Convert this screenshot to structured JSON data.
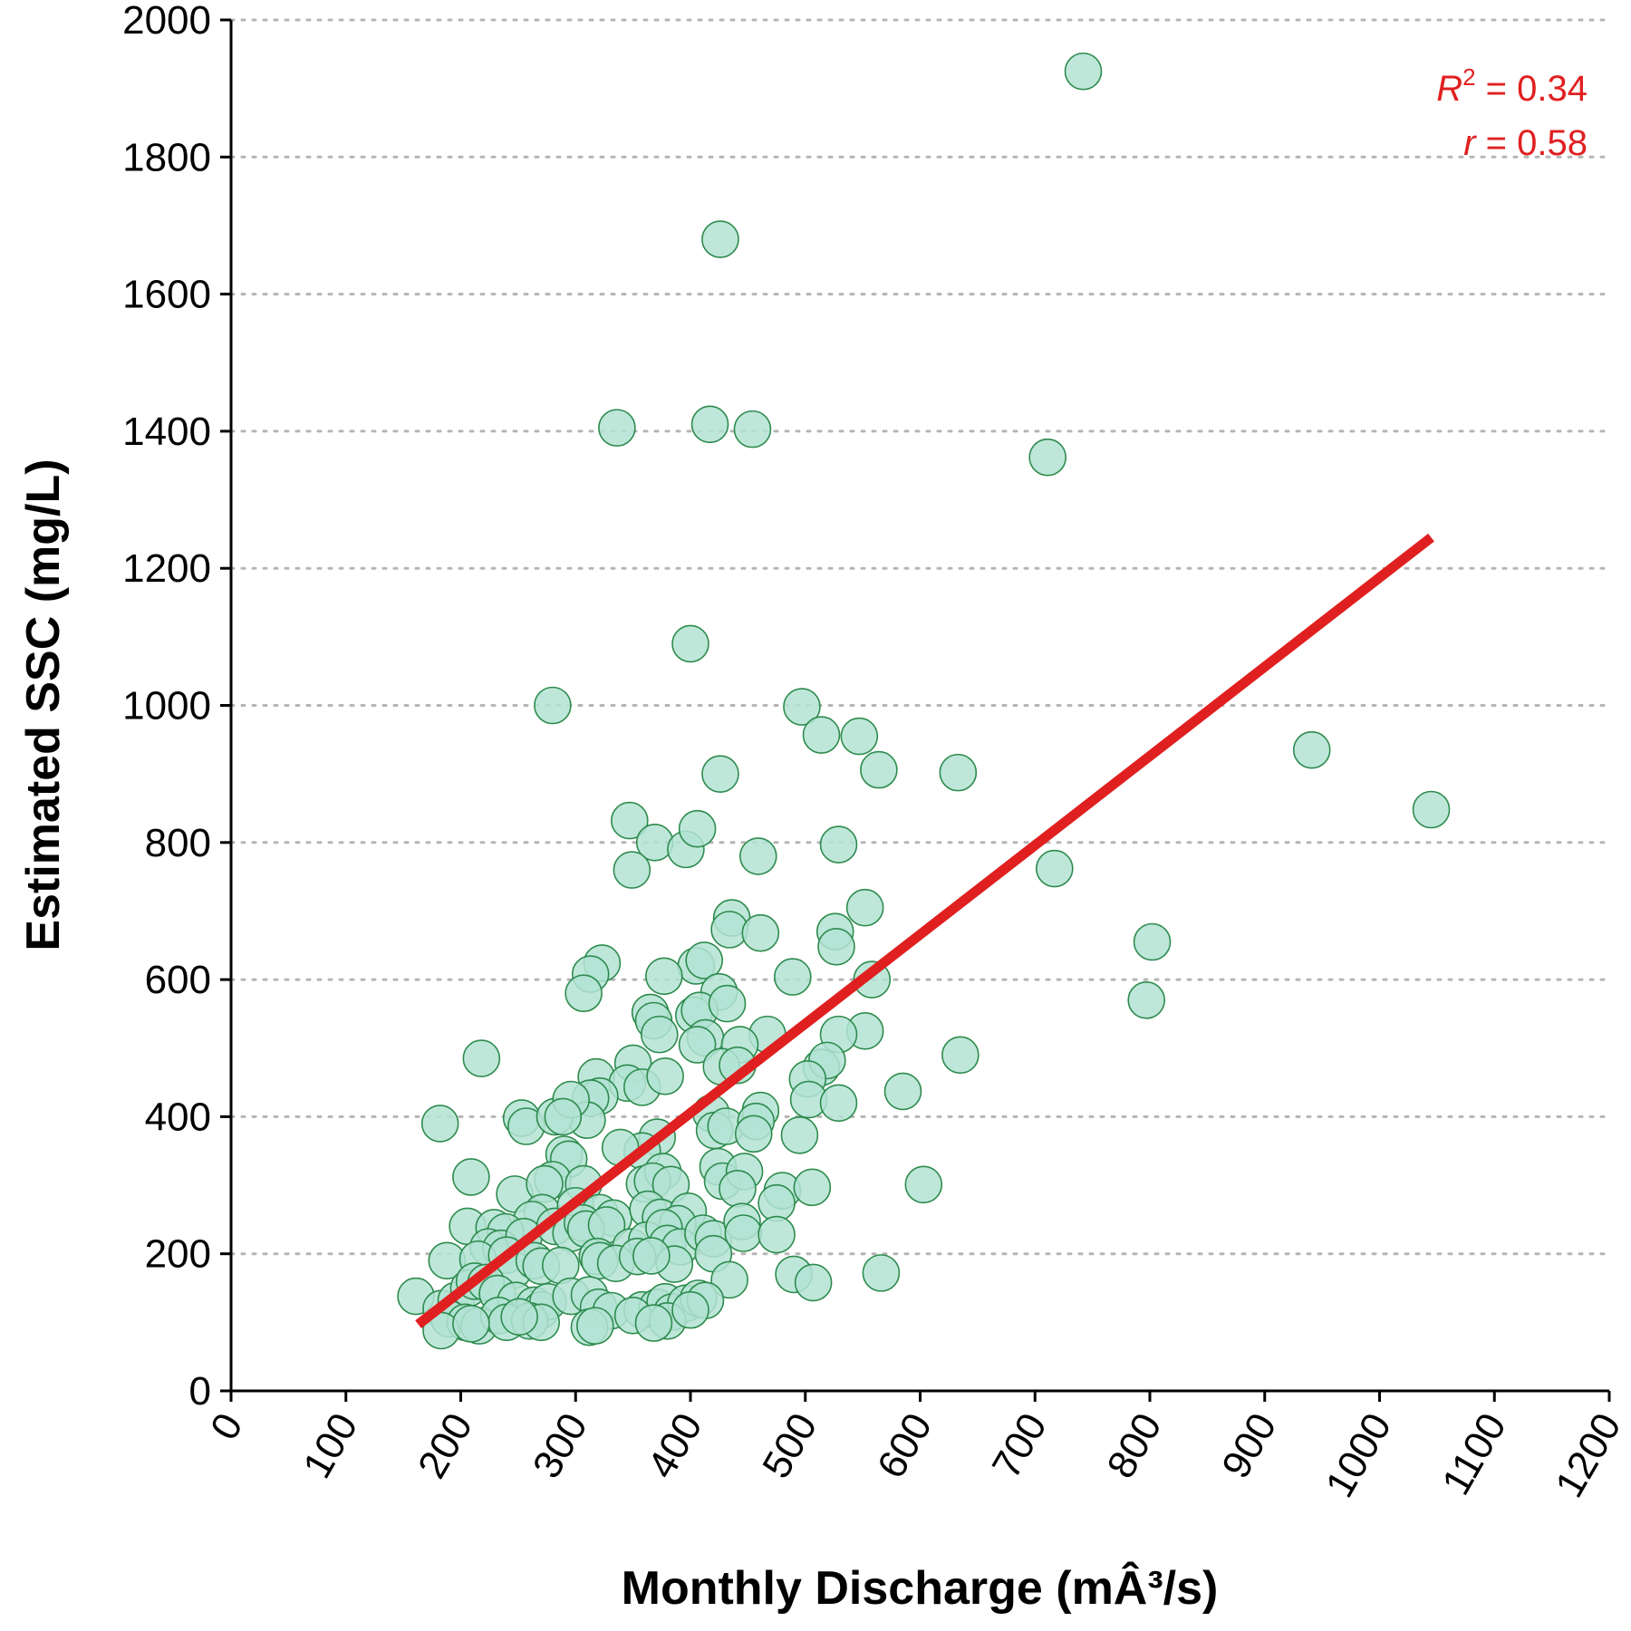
{
  "chart_data": {
    "type": "scatter",
    "xlabel": "Monthly Discharge (mÂ³/s)",
    "ylabel": "Estimated SSC (mg/L)",
    "xlim": [
      0,
      1200
    ],
    "ylim": [
      0,
      2000
    ],
    "xticks": [
      "0",
      "100",
      "200",
      "300",
      "400",
      "500",
      "600",
      "700",
      "800",
      "900",
      "1000",
      "1100",
      "1200"
    ],
    "yticks": [
      "0",
      "200",
      "400",
      "600",
      "800",
      "1000",
      "1200",
      "1400",
      "1600",
      "1800",
      "2000"
    ],
    "grid": "horizontal dotted",
    "colors": {
      "point_fill": "#b3e3d3",
      "point_stroke": "#2e8b4e",
      "trend_line": "#e02020",
      "annotation": "#e02020"
    },
    "annotations": {
      "r2_symbol": "R",
      "r2_exp": "2",
      "r2_value": " = 0.34",
      "r_symbol": "r",
      "r_value": " = 0.58"
    },
    "trend_line": {
      "x": [
        163,
        1045
      ],
      "y": [
        97,
        1245
      ]
    },
    "points": [
      [
        742,
        1925
      ],
      [
        426,
        1680
      ],
      [
        336,
        1405
      ],
      [
        417,
        1410
      ],
      [
        454,
        1403
      ],
      [
        711,
        1362
      ],
      [
        400,
        1090
      ],
      [
        280,
        1000
      ],
      [
        497,
        998
      ],
      [
        514,
        957
      ],
      [
        547,
        955
      ],
      [
        564,
        906
      ],
      [
        426,
        900
      ],
      [
        633,
        902
      ],
      [
        941,
        935
      ],
      [
        1045,
        848
      ],
      [
        347,
        832
      ],
      [
        369,
        800
      ],
      [
        396,
        790
      ],
      [
        406,
        820
      ],
      [
        459,
        780
      ],
      [
        529,
        797
      ],
      [
        349,
        760
      ],
      [
        717,
        762
      ],
      [
        552,
        705
      ],
      [
        802,
        655
      ],
      [
        436,
        690
      ],
      [
        434,
        673
      ],
      [
        461,
        668
      ],
      [
        526,
        670
      ],
      [
        527,
        648
      ],
      [
        323,
        624
      ],
      [
        313,
        608
      ],
      [
        307,
        580
      ],
      [
        405,
        620
      ],
      [
        412,
        628
      ],
      [
        425,
        582
      ],
      [
        377,
        605
      ],
      [
        489,
        604
      ],
      [
        558,
        600
      ],
      [
        797,
        570
      ],
      [
        365,
        552
      ],
      [
        368,
        540
      ],
      [
        403,
        548
      ],
      [
        408,
        555
      ],
      [
        432,
        565
      ],
      [
        373,
        520
      ],
      [
        413,
        515
      ],
      [
        467,
        520
      ],
      [
        406,
        505
      ],
      [
        552,
        525
      ],
      [
        529,
        520
      ],
      [
        635,
        490
      ],
      [
        443,
        505
      ],
      [
        218,
        485
      ],
      [
        350,
        478
      ],
      [
        318,
        458
      ],
      [
        345,
        449
      ],
      [
        321,
        430
      ],
      [
        313,
        427
      ],
      [
        310,
        395
      ],
      [
        358,
        443
      ],
      [
        378,
        459
      ],
      [
        427,
        473
      ],
      [
        441,
        475
      ],
      [
        514,
        472
      ],
      [
        519,
        482
      ],
      [
        502,
        455
      ],
      [
        503,
        425
      ],
      [
        585,
        437
      ],
      [
        529,
        420
      ],
      [
        182,
        390
      ],
      [
        253,
        398
      ],
      [
        257,
        386
      ],
      [
        282,
        400
      ],
      [
        296,
        425
      ],
      [
        289,
        400
      ],
      [
        371,
        370
      ],
      [
        358,
        350
      ],
      [
        339,
        355
      ],
      [
        418,
        405
      ],
      [
        421,
        380
      ],
      [
        431,
        386
      ],
      [
        461,
        409
      ],
      [
        457,
        393
      ],
      [
        455,
        375
      ],
      [
        495,
        373
      ],
      [
        209,
        312
      ],
      [
        247,
        287
      ],
      [
        290,
        345
      ],
      [
        294,
        338
      ],
      [
        280,
        308
      ],
      [
        273,
        302
      ],
      [
        307,
        302
      ],
      [
        360,
        302
      ],
      [
        376,
        320
      ],
      [
        367,
        306
      ],
      [
        383,
        301
      ],
      [
        424,
        327
      ],
      [
        428,
        306
      ],
      [
        447,
        320
      ],
      [
        441,
        295
      ],
      [
        480,
        292
      ],
      [
        506,
        297
      ],
      [
        603,
        301
      ],
      [
        475,
        274
      ],
      [
        271,
        260
      ],
      [
        262,
        250
      ],
      [
        300,
        270
      ],
      [
        321,
        260
      ],
      [
        333,
        252
      ],
      [
        363,
        265
      ],
      [
        374,
        253
      ],
      [
        398,
        262
      ],
      [
        389,
        244
      ],
      [
        206,
        240
      ],
      [
        229,
        238
      ],
      [
        239,
        232
      ],
      [
        224,
        210
      ],
      [
        235,
        208
      ],
      [
        255,
        225
      ],
      [
        282,
        240
      ],
      [
        296,
        230
      ],
      [
        306,
        245
      ],
      [
        309,
        236
      ],
      [
        327,
        242
      ],
      [
        348,
        210
      ],
      [
        362,
        220
      ],
      [
        377,
        238
      ],
      [
        380,
        215
      ],
      [
        391,
        210
      ],
      [
        411,
        230
      ],
      [
        420,
        222
      ],
      [
        445,
        247
      ],
      [
        446,
        230
      ],
      [
        475,
        228
      ],
      [
        188,
        190
      ],
      [
        215,
        192
      ],
      [
        240,
        198
      ],
      [
        246,
        176
      ],
      [
        264,
        190
      ],
      [
        270,
        182
      ],
      [
        287,
        183
      ],
      [
        319,
        196
      ],
      [
        321,
        190
      ],
      [
        335,
        186
      ],
      [
        354,
        196
      ],
      [
        386,
        185
      ],
      [
        366,
        197
      ],
      [
        420,
        200
      ],
      [
        490,
        170
      ],
      [
        566,
        172
      ],
      [
        507,
        158
      ],
      [
        434,
        162
      ],
      [
        161,
        138
      ],
      [
        183,
        120
      ],
      [
        196,
        132
      ],
      [
        207,
        150
      ],
      [
        212,
        160
      ],
      [
        222,
        158
      ],
      [
        232,
        142
      ],
      [
        248,
        132
      ],
      [
        264,
        125
      ],
      [
        270,
        118
      ],
      [
        276,
        130
      ],
      [
        296,
        138
      ],
      [
        312,
        140
      ],
      [
        320,
        122
      ],
      [
        331,
        117
      ],
      [
        358,
        118
      ],
      [
        371,
        122
      ],
      [
        378,
        130
      ],
      [
        384,
        115
      ],
      [
        396,
        128
      ],
      [
        407,
        135
      ],
      [
        413,
        132
      ],
      [
        190,
        105
      ],
      [
        204,
        100
      ],
      [
        216,
        95
      ],
      [
        233,
        110
      ],
      [
        240,
        100
      ],
      [
        260,
        102
      ],
      [
        270,
        100
      ],
      [
        312,
        93
      ],
      [
        350,
        110
      ],
      [
        380,
        102
      ],
      [
        400,
        118
      ],
      [
        183,
        88
      ],
      [
        209,
        98
      ],
      [
        251,
        108
      ],
      [
        317,
        95
      ],
      [
        368,
        99
      ]
    ]
  }
}
